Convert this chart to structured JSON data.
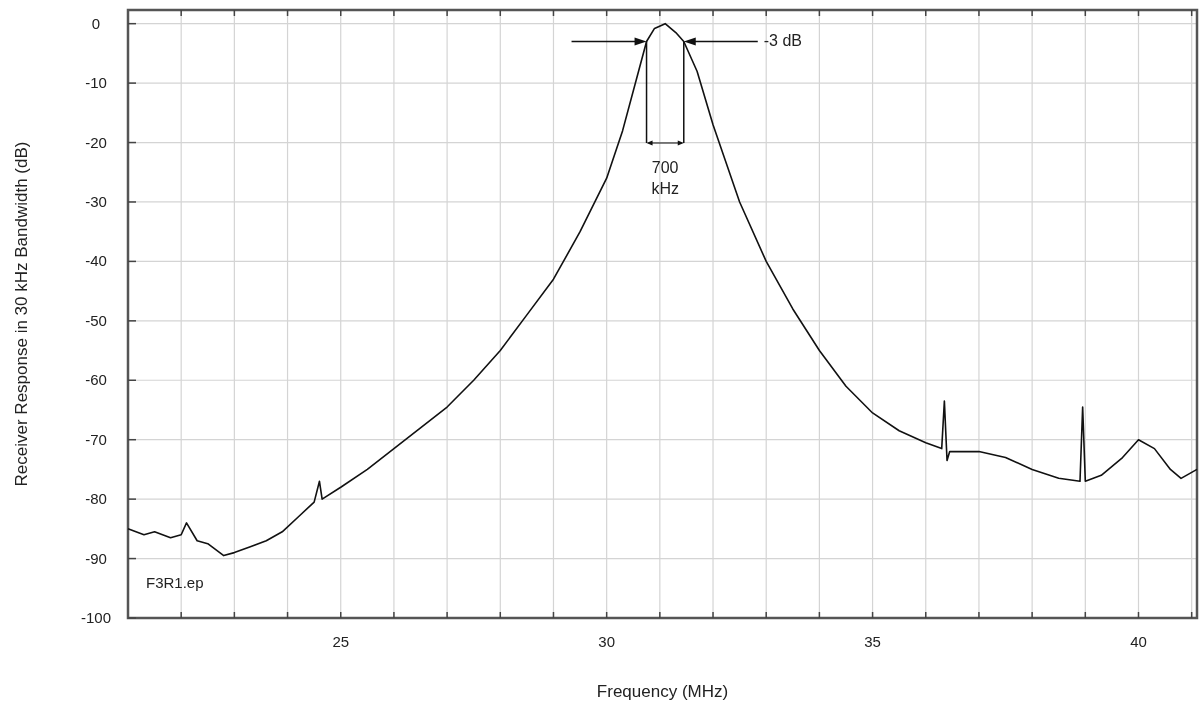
{
  "chart_data": {
    "type": "line",
    "xlabel": "Frequency (MHz)",
    "ylabel": "Receiver Response in 30 kHz Bandwidth (dB)",
    "xlim": [
      21,
      41.1
    ],
    "ylim": [
      -100,
      2.3
    ],
    "xticks": [
      {
        "value": 22,
        "label": null
      },
      {
        "value": 23,
        "label": null
      },
      {
        "value": 24,
        "label": null
      },
      25,
      {
        "value": 26,
        "label": null
      },
      {
        "value": 27,
        "label": null
      },
      {
        "value": 28,
        "label": null
      },
      {
        "value": 29,
        "label": null
      },
      30,
      {
        "value": 31,
        "label": null
      },
      {
        "value": 32,
        "label": null
      },
      {
        "value": 33,
        "label": null
      },
      {
        "value": 34,
        "label": null
      },
      35,
      {
        "value": 36,
        "label": null
      },
      {
        "value": 37,
        "label": null
      },
      {
        "value": 38,
        "label": null
      },
      {
        "value": 39,
        "label": null
      },
      40,
      {
        "value": 41,
        "label": null
      }
    ],
    "yticks": [
      -100,
      -90,
      -80,
      -70,
      -60,
      -50,
      -40,
      -30,
      -20,
      -10,
      0
    ],
    "grid": true,
    "marker": "none",
    "line_style": "solid",
    "series": [
      {
        "color": "#111111",
        "x": [
          21.0,
          21.3,
          21.5,
          21.8,
          22.0,
          22.1,
          22.3,
          22.5,
          22.8,
          23.0,
          23.3,
          23.6,
          23.9,
          24.2,
          24.5,
          24.6,
          24.65,
          25.0,
          25.5,
          26.0,
          26.5,
          27.0,
          27.5,
          28.0,
          28.5,
          29.0,
          29.5,
          30.0,
          30.3,
          30.6,
          30.75,
          30.9,
          31.1,
          31.3,
          31.45,
          31.7,
          32.0,
          32.5,
          33.0,
          33.5,
          34.0,
          34.5,
          35.0,
          35.5,
          36.0,
          36.3,
          36.35,
          36.4,
          36.45,
          37.0,
          37.5,
          38.0,
          38.5,
          38.9,
          38.95,
          39.0,
          39.3,
          39.7,
          40.0,
          40.3,
          40.6,
          40.8,
          41.1
        ],
        "values": [
          -85,
          -86,
          -85.5,
          -86.5,
          -86,
          -84,
          -87,
          -87.5,
          -89.5,
          -89,
          -88,
          -87,
          -85.5,
          -83,
          -80.5,
          -77,
          -80,
          -78,
          -75,
          -71.5,
          -68,
          -64.5,
          -60,
          -55,
          -49,
          -43,
          -35,
          -26,
          -18,
          -8,
          -3,
          -0.8,
          0,
          -1.5,
          -3,
          -8,
          -17,
          -30,
          -40,
          -48,
          -55,
          -61,
          -65.5,
          -68.5,
          -70.5,
          -71.5,
          -63.5,
          -73.5,
          -72,
          -72,
          -73,
          -75,
          -76.5,
          -77,
          -64.5,
          -77,
          -76,
          -73,
          -70,
          -71.5,
          -75,
          -76.5,
          -75
        ]
      }
    ],
    "annotations": [
      "-3 dB",
      {
        "text": "700 kHz",
        "x": 30.75,
        "y": -3
      },
      "F3R1.ep"
    ]
  }
}
